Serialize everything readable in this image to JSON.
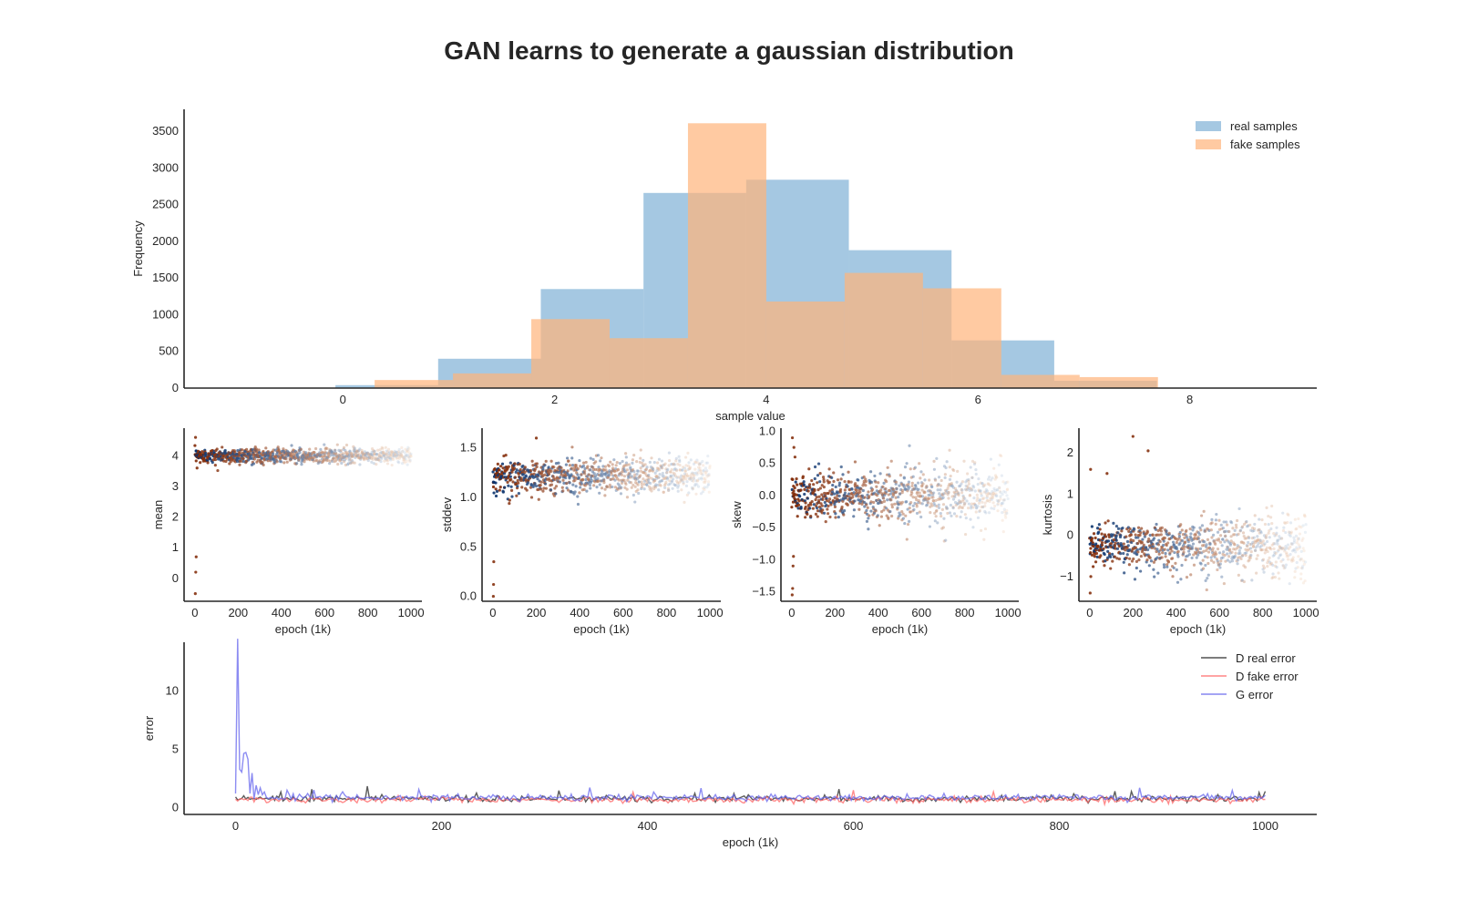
{
  "figure": {
    "title": "GAN learns to generate a gaussian distribution"
  },
  "colors": {
    "real": "#7fb1d6",
    "fake": "#ffb47a",
    "d_real": "#262626",
    "d_fake": "#ff6666",
    "g": "#6666ee",
    "axis": "#262626",
    "overlap": "#c4a58a"
  },
  "chart_data": [
    {
      "type": "bar",
      "id": "hist",
      "xlabel": "sample value",
      "ylabel": "Frequency",
      "xlim": [
        -1.5,
        9.2
      ],
      "ylim": [
        0,
        3800
      ],
      "xticks": [
        0,
        2,
        4,
        6,
        8
      ],
      "yticks": [
        0,
        500,
        1000,
        1500,
        2000,
        2500,
        3000,
        3500
      ],
      "grid": false,
      "legend_position": "top-right",
      "series": [
        {
          "name": "real samples",
          "color": "#7fb1d6",
          "edges": [
            -0.07,
            0.9,
            1.87,
            2.84,
            3.81,
            4.78,
            5.75,
            6.72,
            7.69
          ],
          "values": [
            40,
            400,
            1350,
            2660,
            2840,
            1880,
            650,
            100
          ]
        },
        {
          "name": "fake samples",
          "color": "#ffb47a",
          "edges": [
            0.3,
            1.04,
            1.78,
            2.52,
            3.26,
            4.0,
            4.74,
            5.48,
            6.22,
            6.96,
            7.7
          ],
          "values": [
            110,
            200,
            940,
            680,
            3610,
            1180,
            1570,
            1360,
            180,
            150
          ]
        }
      ]
    },
    {
      "type": "scatter",
      "id": "mean",
      "xlabel": "epoch (1k)",
      "ylabel": "mean",
      "xlim": [
        -50,
        1050
      ],
      "ylim": [
        -0.75,
        4.9
      ],
      "xticks": [
        0,
        200,
        400,
        600,
        800,
        1000
      ],
      "yticks": [
        0,
        1,
        2,
        3,
        4
      ],
      "center": 4.0,
      "spread": 0.12,
      "outliers": [
        [
          2,
          -0.5
        ],
        [
          4,
          0.2
        ],
        [
          6,
          0.7
        ],
        [
          3,
          4.6
        ],
        [
          10,
          3.6
        ]
      ]
    },
    {
      "type": "scatter",
      "id": "stddev",
      "xlabel": "epoch (1k)",
      "ylabel": "stddev",
      "xlim": [
        -50,
        1050
      ],
      "ylim": [
        -0.05,
        1.7
      ],
      "xticks": [
        0,
        200,
        400,
        600,
        800,
        1000
      ],
      "yticks": [
        0.0,
        0.5,
        1.0,
        1.5
      ],
      "center": 1.22,
      "spread": 0.09,
      "outliers": [
        [
          2,
          0.0
        ],
        [
          3,
          0.12
        ],
        [
          4,
          0.35
        ],
        [
          200,
          1.6
        ]
      ]
    },
    {
      "type": "scatter",
      "id": "skew",
      "xlabel": "epoch (1k)",
      "ylabel": "skew",
      "xlim": [
        -50,
        1050
      ],
      "ylim": [
        -1.65,
        1.05
      ],
      "xticks": [
        0,
        200,
        400,
        600,
        800,
        1000
      ],
      "yticks": [
        -1.5,
        -1.0,
        -0.5,
        0.0,
        0.5,
        1.0
      ],
      "center": 0.0,
      "spread": 0.2,
      "outliers": [
        [
          2,
          -1.55
        ],
        [
          4,
          -1.45
        ],
        [
          6,
          -1.1
        ],
        [
          8,
          -0.95
        ],
        [
          3,
          0.9
        ],
        [
          10,
          0.75
        ],
        [
          15,
          0.6
        ]
      ]
    },
    {
      "type": "scatter",
      "id": "kurtosis",
      "xlabel": "epoch (1k)",
      "ylabel": "kurtosis",
      "xlim": [
        -50,
        1050
      ],
      "ylim": [
        -1.6,
        2.6
      ],
      "xticks": [
        0,
        200,
        400,
        600,
        800,
        1000
      ],
      "yticks": [
        -1,
        0,
        1,
        2
      ],
      "center": -0.25,
      "spread": 0.3,
      "outliers": [
        [
          2,
          -1.4
        ],
        [
          5,
          -1.0
        ],
        [
          4,
          1.6
        ],
        [
          200,
          2.4
        ],
        [
          270,
          2.05
        ],
        [
          80,
          1.5
        ]
      ]
    },
    {
      "type": "line",
      "id": "error",
      "xlabel": "epoch (1k)",
      "ylabel": "error",
      "xlim": [
        -50,
        1050
      ],
      "ylim": [
        -0.6,
        14.2
      ],
      "xticks": [
        0,
        200,
        400,
        600,
        800,
        1000
      ],
      "yticks": [
        0,
        5,
        10
      ],
      "legend_position": "top-right",
      "series": [
        {
          "name": "D real error",
          "color": "#262626",
          "base": 0.75
        },
        {
          "name": "D fake error",
          "color": "#ff6666",
          "base": 0.65
        },
        {
          "name": "G error",
          "color": "#6666ee",
          "base": 0.85,
          "peaks": [
            [
              2,
              13.8
            ],
            [
              5,
              3.0
            ],
            [
              9,
              4.4
            ],
            [
              12,
              3.6
            ],
            [
              16,
              2.7
            ],
            [
              20,
              1.5
            ]
          ]
        }
      ]
    }
  ]
}
